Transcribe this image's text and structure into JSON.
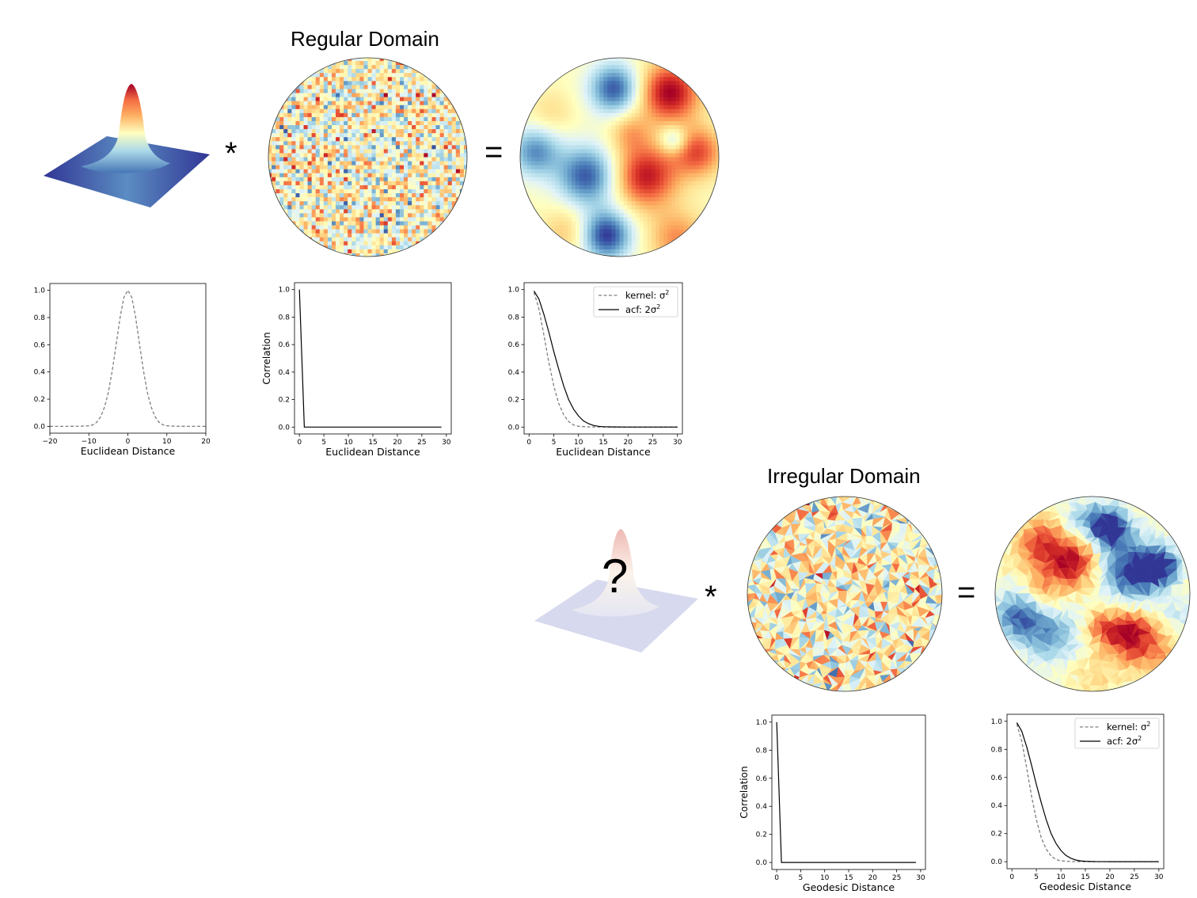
{
  "regular": {
    "title": "Regular Domain",
    "operators": {
      "convolve": "*",
      "equals": "="
    }
  },
  "irregular": {
    "title": "Irregular Domain",
    "operators": {
      "convolve": "*",
      "equals": "="
    },
    "unknown_kernel": "?"
  },
  "colormap": [
    "#313695",
    "#4575b4",
    "#74add1",
    "#abd9e9",
    "#e0f3f8",
    "#ffffbf",
    "#fee090",
    "#fdae61",
    "#f46d43",
    "#d73027",
    "#a50026"
  ],
  "chart_data": [
    {
      "id": "kernel-euclidean",
      "type": "line",
      "xlabel": "Euclidean Distance",
      "ylabel": "",
      "xlim": [
        -20,
        20
      ],
      "ylim": [
        0,
        1.0
      ],
      "xticks": [
        -20,
        -10,
        0,
        10,
        20
      ],
      "xtick_labels": [
        "−20",
        "−10",
        "0",
        "10",
        "20"
      ],
      "yticks": [
        0.0,
        0.2,
        0.4,
        0.6,
        0.8,
        1.0
      ],
      "ytick_labels": [
        "0.0",
        "0.2",
        "0.4",
        "0.6",
        "0.8",
        "1.0"
      ],
      "legend": null,
      "series": [
        {
          "style": "dashed",
          "x": [
            -20,
            -16,
            -12,
            -10,
            -9,
            -8,
            -7,
            -6,
            -5,
            -4,
            -3,
            -2,
            -1,
            0,
            1,
            2,
            3,
            4,
            5,
            6,
            7,
            8,
            9,
            10,
            12,
            16,
            20
          ],
          "y": [
            0,
            0,
            0.001,
            0.004,
            0.011,
            0.03,
            0.07,
            0.14,
            0.25,
            0.41,
            0.6,
            0.8,
            0.95,
            1.0,
            0.95,
            0.8,
            0.6,
            0.41,
            0.25,
            0.14,
            0.07,
            0.03,
            0.011,
            0.004,
            0.001,
            0,
            0
          ]
        }
      ]
    },
    {
      "id": "noise-euclidean",
      "type": "line",
      "xlabel": "Euclidean Distance",
      "ylabel": "Correlation",
      "xlim": [
        -1,
        31
      ],
      "ylim": [
        0,
        1.0
      ],
      "xticks": [
        0,
        5,
        10,
        15,
        20,
        25,
        30
      ],
      "xtick_labels": [
        "0",
        "5",
        "10",
        "15",
        "20",
        "25",
        "30"
      ],
      "yticks": [
        0.0,
        0.2,
        0.4,
        0.6,
        0.8,
        1.0
      ],
      "ytick_labels": [
        "0.0",
        "0.2",
        "0.4",
        "0.6",
        "0.8",
        "1.0"
      ],
      "legend": null,
      "series": [
        {
          "style": "solid",
          "x": [
            0,
            1,
            2,
            5,
            10,
            15,
            20,
            25,
            29
          ],
          "y": [
            1.0,
            0.0,
            0.0,
            0.0,
            0.0,
            0.0,
            0.0,
            0.0,
            0.0
          ]
        }
      ]
    },
    {
      "id": "acf-euclidean",
      "type": "line",
      "xlabel": "Euclidean Distance",
      "ylabel": "",
      "xlim": [
        -1,
        31
      ],
      "ylim": [
        0,
        1.0
      ],
      "xticks": [
        0,
        5,
        10,
        15,
        20,
        25,
        30
      ],
      "xtick_labels": [
        "0",
        "5",
        "10",
        "15",
        "20",
        "25",
        "30"
      ],
      "yticks": [
        0.0,
        0.2,
        0.4,
        0.6,
        0.8,
        1.0
      ],
      "ytick_labels": [
        "0.0",
        "0.2",
        "0.4",
        "0.6",
        "0.8",
        "1.0"
      ],
      "legend": "top-right",
      "series": [
        {
          "name_prefix": "kernel: σ",
          "name_sup": "2",
          "style": "dashed",
          "x": [
            1,
            2,
            3,
            4,
            5,
            6,
            7,
            8,
            9,
            10,
            12,
            15,
            20,
            25,
            30
          ],
          "y": [
            0.98,
            0.86,
            0.67,
            0.47,
            0.3,
            0.17,
            0.09,
            0.04,
            0.015,
            0.006,
            0.001,
            0,
            0,
            0,
            0
          ]
        },
        {
          "name_prefix": "acf: 2σ",
          "name_sup": "2",
          "style": "solid",
          "x": [
            1,
            2,
            3,
            4,
            5,
            6,
            7,
            8,
            9,
            10,
            11,
            12,
            13,
            14,
            15,
            17,
            20,
            25,
            30
          ],
          "y": [
            0.99,
            0.93,
            0.82,
            0.69,
            0.55,
            0.42,
            0.3,
            0.2,
            0.13,
            0.08,
            0.045,
            0.025,
            0.012,
            0.006,
            0.003,
            0.001,
            0,
            0,
            0
          ]
        }
      ]
    },
    {
      "id": "noise-geodesic",
      "type": "line",
      "xlabel": "Geodesic Distance",
      "ylabel": "Correlation",
      "xlim": [
        -1,
        31
      ],
      "ylim": [
        0,
        1.0
      ],
      "xticks": [
        0,
        5,
        10,
        15,
        20,
        25,
        30
      ],
      "xtick_labels": [
        "0",
        "5",
        "10",
        "15",
        "20",
        "25",
        "30"
      ],
      "yticks": [
        0.0,
        0.2,
        0.4,
        0.6,
        0.8,
        1.0
      ],
      "ytick_labels": [
        "0.0",
        "0.2",
        "0.4",
        "0.6",
        "0.8",
        "1.0"
      ],
      "legend": null,
      "series": [
        {
          "style": "solid",
          "x": [
            0,
            1,
            2,
            5,
            10,
            15,
            20,
            25,
            29
          ],
          "y": [
            1.0,
            0.0,
            0.0,
            0.0,
            0.0,
            0.0,
            0.0,
            0.0,
            0.0
          ]
        }
      ]
    },
    {
      "id": "acf-geodesic",
      "type": "line",
      "xlabel": "Geodesic Distance",
      "ylabel": "",
      "xlim": [
        -1,
        31
      ],
      "ylim": [
        0,
        1.0
      ],
      "xticks": [
        0,
        5,
        10,
        15,
        20,
        25,
        30
      ],
      "xtick_labels": [
        "0",
        "5",
        "10",
        "15",
        "20",
        "25",
        "30"
      ],
      "yticks": [
        0.0,
        0.2,
        0.4,
        0.6,
        0.8,
        1.0
      ],
      "ytick_labels": [
        "0.0",
        "0.2",
        "0.4",
        "0.6",
        "0.8",
        "1.0"
      ],
      "legend": "top-right",
      "series": [
        {
          "name_prefix": "kernel: σ",
          "name_sup": "2",
          "style": "dashed",
          "x": [
            1,
            2,
            3,
            4,
            5,
            6,
            7,
            8,
            9,
            10,
            12,
            15,
            20,
            25,
            30
          ],
          "y": [
            0.98,
            0.86,
            0.67,
            0.47,
            0.3,
            0.17,
            0.09,
            0.04,
            0.015,
            0.006,
            0.001,
            0,
            0,
            0,
            0
          ]
        },
        {
          "name_prefix": "acf: 2σ",
          "name_sup": "2",
          "style": "solid",
          "x": [
            1,
            2,
            3,
            4,
            5,
            6,
            7,
            8,
            9,
            10,
            11,
            12,
            13,
            14,
            15,
            17,
            20,
            25,
            30
          ],
          "y": [
            0.99,
            0.93,
            0.82,
            0.69,
            0.55,
            0.42,
            0.3,
            0.2,
            0.13,
            0.08,
            0.045,
            0.025,
            0.012,
            0.006,
            0.003,
            0.001,
            0,
            0,
            0
          ]
        }
      ]
    }
  ]
}
